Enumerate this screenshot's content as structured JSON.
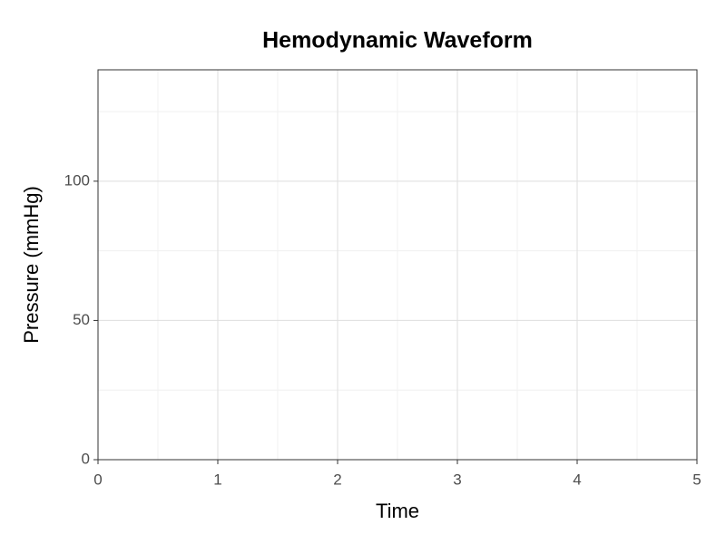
{
  "chart_data": {
    "type": "line",
    "title": "Hemodynamic Waveform",
    "x_label": "Time",
    "y_label": "Pressure (mmHg)",
    "series": [],
    "xlim": [
      0,
      5
    ],
    "xticks": [
      0,
      1,
      2,
      3,
      4,
      5
    ],
    "x_minor_ticks": [
      0.5,
      1.5,
      2.5,
      3.5,
      4.5
    ],
    "ylim": [
      0,
      140
    ],
    "yticks": [
      0,
      50,
      100
    ],
    "y_minor_ticks": [
      25,
      75,
      125
    ],
    "grid": true
  }
}
